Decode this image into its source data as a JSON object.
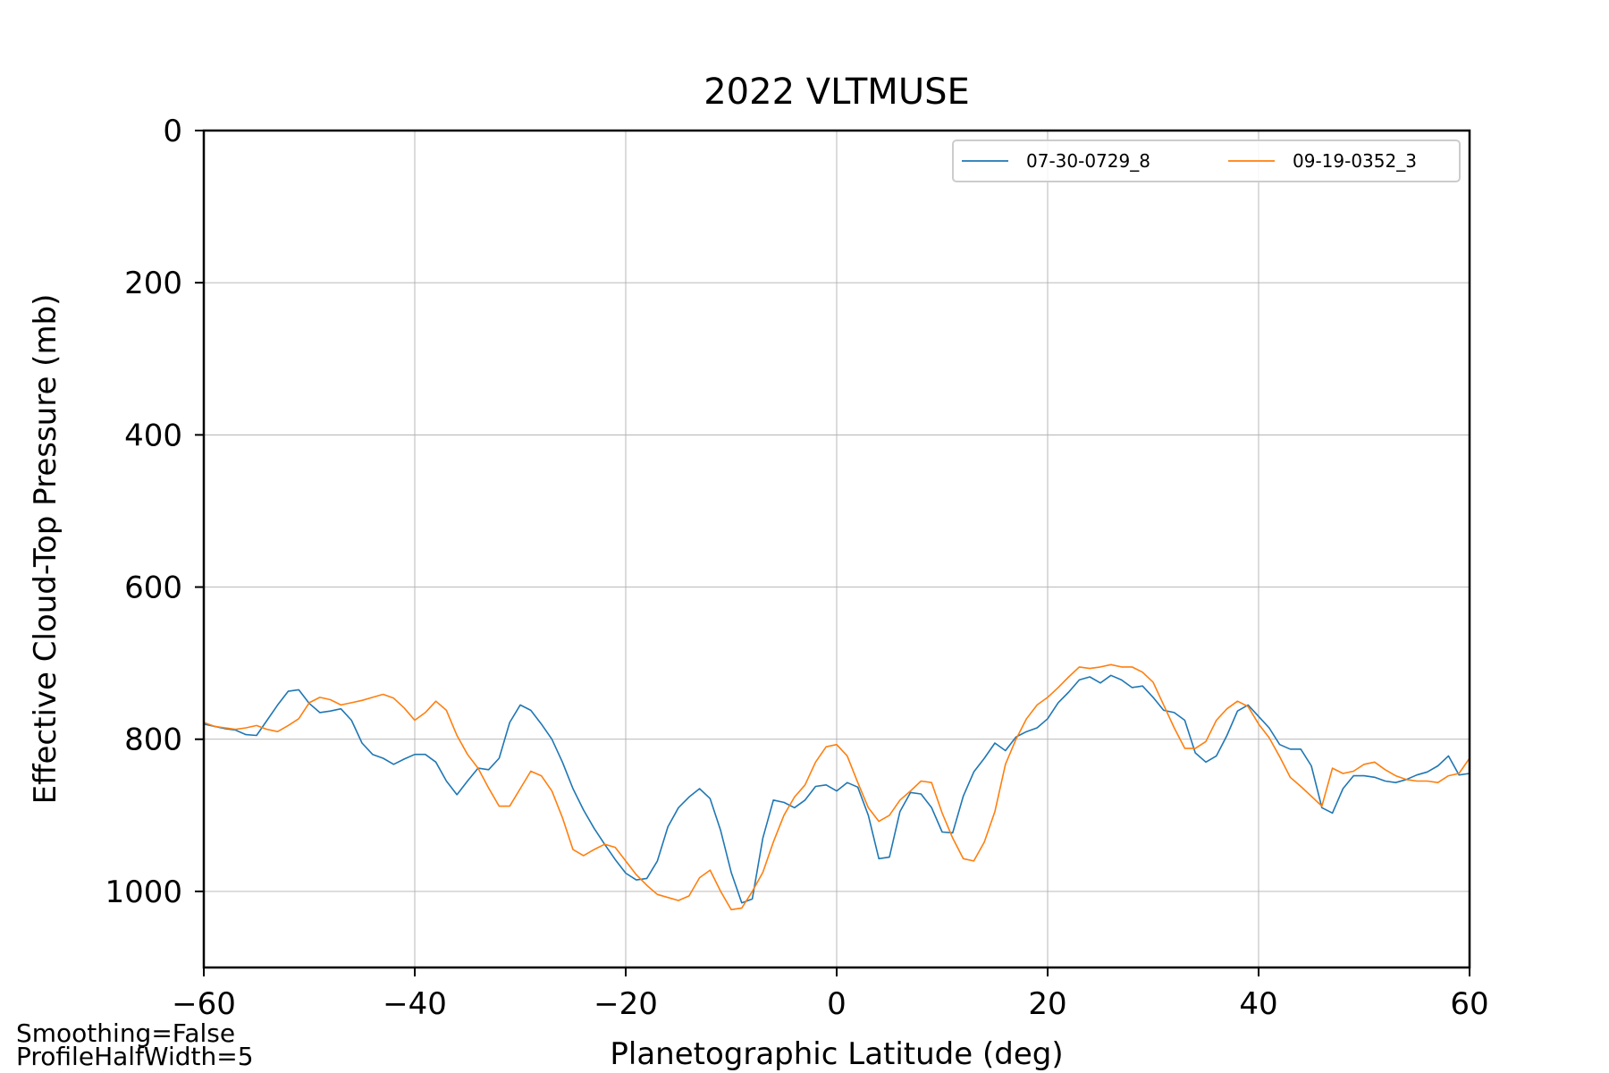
{
  "chart_data": {
    "type": "line",
    "title": "2022 VLTMUSE",
    "xlabel": "Planetographic Latitude (deg)",
    "ylabel": "Effective Cloud-Top Pressure (mb)",
    "xlim": [
      -60,
      60
    ],
    "ylim": [
      1100,
      0
    ],
    "y_inverted": true,
    "xticks": [
      -60,
      -40,
      -20,
      0,
      20,
      40,
      60
    ],
    "yticks": [
      0,
      200,
      400,
      600,
      800,
      1000
    ],
    "grid": true,
    "legend_position": "top-right",
    "series": [
      {
        "name": "07-30-0729_8",
        "color": "#1f77b4",
        "points": [
          [
            -60,
            780
          ],
          [
            -59,
            783
          ],
          [
            -58,
            786
          ],
          [
            -57,
            788
          ],
          [
            -56,
            794
          ],
          [
            -55,
            795
          ],
          [
            -54,
            775
          ],
          [
            -53,
            755
          ],
          [
            -52,
            737
          ],
          [
            -51,
            735
          ],
          [
            -50,
            753
          ],
          [
            -49,
            765
          ],
          [
            -48,
            763
          ],
          [
            -47,
            760
          ],
          [
            -46,
            775
          ],
          [
            -45,
            805
          ],
          [
            -44,
            820
          ],
          [
            -43,
            825
          ],
          [
            -42,
            833
          ],
          [
            -41,
            826
          ],
          [
            -40,
            820
          ],
          [
            -39,
            820
          ],
          [
            -38,
            830
          ],
          [
            -37,
            855
          ],
          [
            -36,
            873
          ],
          [
            -35,
            855
          ],
          [
            -34,
            838
          ],
          [
            -33,
            840
          ],
          [
            -32,
            825
          ],
          [
            -31,
            778
          ],
          [
            -30,
            755
          ],
          [
            -29,
            762
          ],
          [
            -28,
            780
          ],
          [
            -27,
            800
          ],
          [
            -26,
            830
          ],
          [
            -25,
            865
          ],
          [
            -24,
            893
          ],
          [
            -23,
            917
          ],
          [
            -22,
            938
          ],
          [
            -21,
            958
          ],
          [
            -20,
            976
          ],
          [
            -19,
            985
          ],
          [
            -18,
            983
          ],
          [
            -17,
            960
          ],
          [
            -16,
            915
          ],
          [
            -15,
            890
          ],
          [
            -14,
            876
          ],
          [
            -13,
            865
          ],
          [
            -12,
            878
          ],
          [
            -11,
            920
          ],
          [
            -10,
            975
          ],
          [
            -9,
            1015
          ],
          [
            -8,
            1010
          ],
          [
            -7,
            930
          ],
          [
            -6,
            880
          ],
          [
            -5,
            883
          ],
          [
            -4,
            890
          ],
          [
            -3,
            880
          ],
          [
            -2,
            862
          ],
          [
            -1,
            860
          ],
          [
            0,
            868
          ],
          [
            1,
            857
          ],
          [
            2,
            863
          ],
          [
            3,
            900
          ],
          [
            4,
            957
          ],
          [
            5,
            955
          ],
          [
            6,
            895
          ],
          [
            7,
            870
          ],
          [
            8,
            872
          ],
          [
            9,
            890
          ],
          [
            10,
            922
          ],
          [
            11,
            923
          ],
          [
            12,
            875
          ],
          [
            13,
            843
          ],
          [
            14,
            825
          ],
          [
            15,
            805
          ],
          [
            16,
            815
          ],
          [
            17,
            797
          ],
          [
            18,
            790
          ],
          [
            19,
            785
          ],
          [
            20,
            773
          ],
          [
            21,
            752
          ],
          [
            22,
            738
          ],
          [
            23,
            722
          ],
          [
            24,
            718
          ],
          [
            25,
            726
          ],
          [
            26,
            716
          ],
          [
            27,
            722
          ],
          [
            28,
            732
          ],
          [
            29,
            730
          ],
          [
            30,
            745
          ],
          [
            31,
            762
          ],
          [
            32,
            765
          ],
          [
            33,
            775
          ],
          [
            34,
            818
          ],
          [
            35,
            830
          ],
          [
            36,
            822
          ],
          [
            37,
            795
          ],
          [
            38,
            763
          ],
          [
            39,
            755
          ],
          [
            40,
            770
          ],
          [
            41,
            785
          ],
          [
            42,
            807
          ],
          [
            43,
            813
          ],
          [
            44,
            813
          ],
          [
            45,
            835
          ],
          [
            46,
            890
          ],
          [
            47,
            897
          ],
          [
            48,
            865
          ],
          [
            49,
            848
          ],
          [
            50,
            848
          ],
          [
            51,
            850
          ],
          [
            52,
            855
          ],
          [
            53,
            857
          ],
          [
            54,
            853
          ],
          [
            55,
            847
          ],
          [
            56,
            843
          ],
          [
            57,
            835
          ],
          [
            58,
            822
          ],
          [
            59,
            847
          ],
          [
            60,
            845
          ]
        ]
      },
      {
        "name": "09-19-0352_3",
        "color": "#ff7f0e",
        "points": [
          [
            -60,
            778
          ],
          [
            -59,
            783
          ],
          [
            -58,
            785
          ],
          [
            -57,
            787
          ],
          [
            -56,
            785
          ],
          [
            -55,
            782
          ],
          [
            -54,
            787
          ],
          [
            -53,
            790
          ],
          [
            -52,
            782
          ],
          [
            -51,
            773
          ],
          [
            -50,
            752
          ],
          [
            -49,
            745
          ],
          [
            -48,
            748
          ],
          [
            -47,
            755
          ],
          [
            -46,
            752
          ],
          [
            -45,
            749
          ],
          [
            -44,
            745
          ],
          [
            -43,
            741
          ],
          [
            -42,
            746
          ],
          [
            -41,
            759
          ],
          [
            -40,
            775
          ],
          [
            -39,
            765
          ],
          [
            -38,
            750
          ],
          [
            -37,
            762
          ],
          [
            -36,
            795
          ],
          [
            -35,
            820
          ],
          [
            -34,
            838
          ],
          [
            -33,
            864
          ],
          [
            -32,
            888
          ],
          [
            -31,
            888
          ],
          [
            -30,
            865
          ],
          [
            -29,
            842
          ],
          [
            -28,
            848
          ],
          [
            -27,
            868
          ],
          [
            -26,
            903
          ],
          [
            -25,
            945
          ],
          [
            -24,
            953
          ],
          [
            -23,
            945
          ],
          [
            -22,
            938
          ],
          [
            -21,
            942
          ],
          [
            -20,
            960
          ],
          [
            -19,
            978
          ],
          [
            -18,
            992
          ],
          [
            -17,
            1004
          ],
          [
            -16,
            1008
          ],
          [
            -15,
            1012
          ],
          [
            -14,
            1006
          ],
          [
            -13,
            982
          ],
          [
            -12,
            972
          ],
          [
            -11,
            1000
          ],
          [
            -10,
            1024
          ],
          [
            -9,
            1022
          ],
          [
            -8,
            1000
          ],
          [
            -7,
            975
          ],
          [
            -6,
            935
          ],
          [
            -5,
            900
          ],
          [
            -4,
            876
          ],
          [
            -3,
            860
          ],
          [
            -2,
            830
          ],
          [
            -1,
            810
          ],
          [
            0,
            807
          ],
          [
            1,
            822
          ],
          [
            2,
            857
          ],
          [
            3,
            890
          ],
          [
            4,
            908
          ],
          [
            5,
            900
          ],
          [
            6,
            880
          ],
          [
            7,
            868
          ],
          [
            8,
            855
          ],
          [
            9,
            857
          ],
          [
            10,
            897
          ],
          [
            11,
            930
          ],
          [
            12,
            957
          ],
          [
            13,
            960
          ],
          [
            14,
            935
          ],
          [
            15,
            895
          ],
          [
            16,
            833
          ],
          [
            17,
            800
          ],
          [
            18,
            773
          ],
          [
            19,
            755
          ],
          [
            20,
            745
          ],
          [
            21,
            732
          ],
          [
            22,
            718
          ],
          [
            23,
            705
          ],
          [
            24,
            707
          ],
          [
            25,
            705
          ],
          [
            26,
            702
          ],
          [
            27,
            705
          ],
          [
            28,
            705
          ],
          [
            29,
            712
          ],
          [
            30,
            725
          ],
          [
            31,
            755
          ],
          [
            32,
            785
          ],
          [
            33,
            812
          ],
          [
            34,
            812
          ],
          [
            35,
            803
          ],
          [
            36,
            775
          ],
          [
            37,
            760
          ],
          [
            38,
            750
          ],
          [
            39,
            757
          ],
          [
            40,
            780
          ],
          [
            41,
            798
          ],
          [
            42,
            823
          ],
          [
            43,
            850
          ],
          [
            44,
            862
          ],
          [
            45,
            875
          ],
          [
            46,
            888
          ],
          [
            47,
            838
          ],
          [
            48,
            845
          ],
          [
            49,
            842
          ],
          [
            50,
            833
          ],
          [
            51,
            830
          ],
          [
            52,
            840
          ],
          [
            53,
            848
          ],
          [
            54,
            853
          ],
          [
            55,
            855
          ],
          [
            56,
            855
          ],
          [
            57,
            857
          ],
          [
            58,
            848
          ],
          [
            59,
            845
          ],
          [
            60,
            825
          ]
        ]
      }
    ]
  },
  "annotations": {
    "smoothing": "Smoothing=False",
    "profile_half_width": "ProfileHalfWidth=5"
  },
  "colors": {
    "grid": "#b0b0b0",
    "axes": "#000000",
    "legend_border": "#cccccc"
  }
}
